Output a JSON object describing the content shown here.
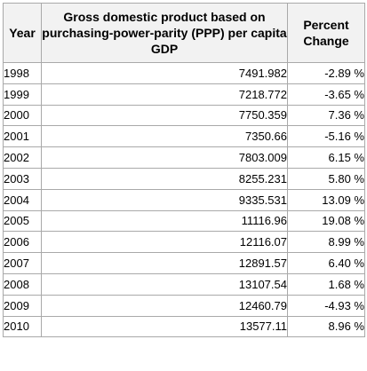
{
  "table": {
    "headers": {
      "year": "Year",
      "gdp": "Gross domestic product based on purchasing-power-parity (PPP) per capita GDP",
      "pct": "Percent Change"
    },
    "rows": [
      {
        "year": "1998",
        "gdp": "7491.982",
        "pct": "-2.89 %"
      },
      {
        "year": "1999",
        "gdp": "7218.772",
        "pct": "-3.65 %"
      },
      {
        "year": "2000",
        "gdp": "7750.359",
        "pct": "7.36 %"
      },
      {
        "year": "2001",
        "gdp": "7350.66",
        "pct": "-5.16 %"
      },
      {
        "year": "2002",
        "gdp": "7803.009",
        "pct": "6.15 %"
      },
      {
        "year": "2003",
        "gdp": "8255.231",
        "pct": "5.80 %"
      },
      {
        "year": "2004",
        "gdp": "9335.531",
        "pct": "13.09 %"
      },
      {
        "year": "2005",
        "gdp": "11116.96",
        "pct": "19.08 %"
      },
      {
        "year": "2006",
        "gdp": "12116.07",
        "pct": "8.99 %"
      },
      {
        "year": "2007",
        "gdp": "12891.57",
        "pct": "6.40 %"
      },
      {
        "year": "2008",
        "gdp": "13107.54",
        "pct": "1.68 %"
      },
      {
        "year": "2009",
        "gdp": "12460.79",
        "pct": "-4.93 %"
      },
      {
        "year": "2010",
        "gdp": "13577.11",
        "pct": "8.96 %"
      }
    ]
  }
}
